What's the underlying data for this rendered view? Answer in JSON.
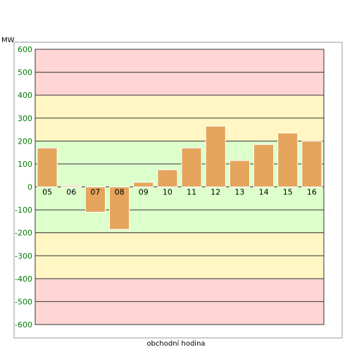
{
  "chart_data": {
    "type": "bar",
    "ylabel": "MW",
    "xlabel": "obchodní hodina",
    "categories": [
      "05",
      "06",
      "07",
      "08",
      "09",
      "10",
      "11",
      "12",
      "13",
      "14",
      "15",
      "16"
    ],
    "values": [
      170,
      5,
      -110,
      -185,
      20,
      75,
      170,
      265,
      115,
      185,
      235,
      200
    ],
    "ylim": [
      -600,
      600
    ],
    "yticks": [
      600,
      500,
      400,
      300,
      200,
      100,
      0,
      -100,
      -200,
      -300,
      -400,
      -500,
      -600
    ],
    "grid": true,
    "bands": [
      {
        "from": 400,
        "to": 600,
        "color": "#ffd5d5"
      },
      {
        "from": 200,
        "to": 400,
        "color": "#fff6c4"
      },
      {
        "from": -200,
        "to": 200,
        "color": "#ddffcc"
      },
      {
        "from": -400,
        "to": -200,
        "color": "#fff6c4"
      },
      {
        "from": -600,
        "to": -400,
        "color": "#ffd5d5"
      }
    ],
    "colors": {
      "bar": "#e5a55c",
      "bar_edge": "#ffffff",
      "tick_text": "#007a00",
      "grid": "#333333",
      "frame": "#333333"
    }
  }
}
